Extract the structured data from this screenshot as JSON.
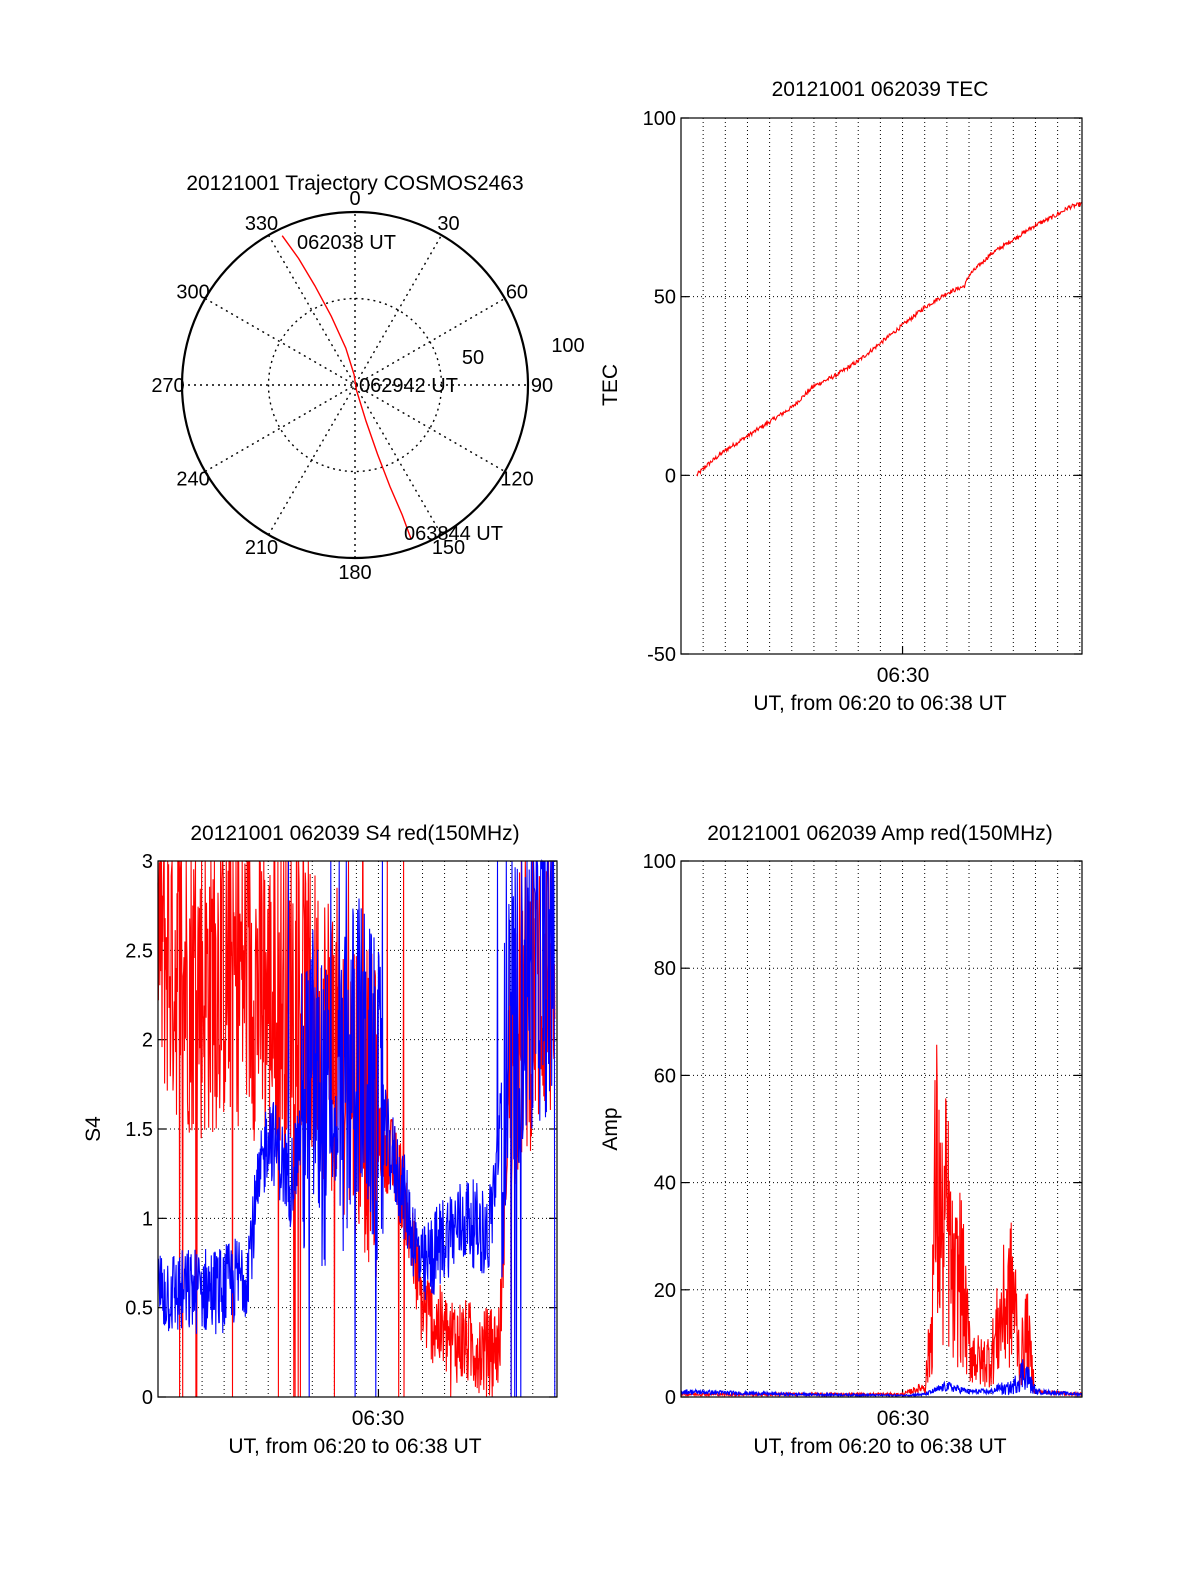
{
  "colors": {
    "red": "#ff0000",
    "blue": "#0000ff",
    "grid": "#000000",
    "axis": "#000000"
  },
  "chart_data": [
    {
      "id": "trajectory",
      "type": "polar",
      "title": "20121001 Trajectory COSMOS2463",
      "azimuth_labels": [
        "0",
        "30",
        "60",
        "90",
        "120",
        "150",
        "180",
        "210",
        "240",
        "270",
        "300",
        "330"
      ],
      "ring_labels": [
        "50",
        "100"
      ],
      "rlim": [
        0,
        100
      ],
      "track": [
        [
          334,
          96
        ],
        [
          336,
          80
        ],
        [
          338,
          62
        ],
        [
          341,
          42
        ],
        [
          346,
          22
        ],
        [
          355,
          6
        ],
        [
          164,
          3
        ],
        [
          163,
          22
        ],
        [
          162,
          42
        ],
        [
          161,
          62
        ],
        [
          160,
          80
        ],
        [
          160,
          95
        ]
      ],
      "annotations": [
        {
          "text": "062038 UT",
          "az": 334,
          "r": 96
        },
        {
          "text": "062942 UT",
          "az": 0,
          "r": 0
        },
        {
          "text": "063844 UT",
          "az": 160,
          "r": 95
        }
      ]
    },
    {
      "id": "tec",
      "type": "line",
      "title": "20121001 062039 TEC",
      "ylabel": "TEC",
      "xlabel": "UT, from 06:20 to 06:38 UT",
      "xtick_labels": [
        "06:30"
      ],
      "xlim": [
        0,
        18.1
      ],
      "ylim": [
        -50,
        100
      ],
      "yticks": [
        -50,
        0,
        50,
        100
      ],
      "series": [
        {
          "color": "#ff0000",
          "x": [
            0.7,
            1.2,
            2.0,
            3.0,
            4.0,
            5.0,
            6.0,
            7.0,
            8.0,
            9.0,
            10.0,
            11.0,
            12.0,
            12.8,
            13.0,
            14.0,
            15.0,
            16.0,
            17.0,
            17.5,
            18.1
          ],
          "y": [
            0,
            3,
            7,
            11,
            15,
            19,
            25,
            28,
            32,
            37,
            42,
            47,
            51,
            53,
            56,
            62,
            66,
            70,
            73,
            75,
            76
          ]
        }
      ]
    },
    {
      "id": "s4",
      "type": "line",
      "title": "20121001 062039 S4 red(150MHz)",
      "ylabel": "S4",
      "xlabel": "UT, from 06:20 to 06:38 UT",
      "xtick_labels": [
        "06:30"
      ],
      "xlim": [
        0,
        18.1
      ],
      "ylim": [
        0,
        3
      ],
      "yticks": [
        0,
        0.5,
        1,
        1.5,
        2,
        2.5,
        3
      ],
      "series": [
        {
          "color": "#ff0000",
          "x": [
            0,
            1.0,
            2.0,
            3.0,
            4.0,
            5.0,
            6.0,
            7.0,
            8.0,
            9.0,
            10.0,
            11.0,
            12.0,
            13.0,
            14.0,
            15.0,
            15.5,
            16.0,
            17.0,
            18.0
          ],
          "y": [
            2.6,
            2.4,
            2.3,
            2.4,
            2.4,
            2.2,
            2.3,
            2.1,
            2.0,
            1.8,
            1.5,
            1.2,
            0.5,
            0.35,
            0.3,
            0.25,
            0.3,
            2.0,
            2.3,
            2.4
          ]
        },
        {
          "color": "#0000ff",
          "x": [
            0,
            1.0,
            2.0,
            3.0,
            4.0,
            5.0,
            6.0,
            7.0,
            8.0,
            9.0,
            10.0,
            11.0,
            12.0,
            13.0,
            14.0,
            15.0,
            16.0,
            17.0,
            18.0
          ],
          "y": [
            0.6,
            0.58,
            0.6,
            0.6,
            0.7,
            1.5,
            1.2,
            1.8,
            1.4,
            2.0,
            1.6,
            1.2,
            0.7,
            0.9,
            1.0,
            0.9,
            2.0,
            2.4,
            2.5
          ]
        }
      ]
    },
    {
      "id": "amp",
      "type": "line",
      "title": "20121001 062039 Amp red(150MHz)",
      "ylabel": "Amp",
      "xlabel": "UT, from 06:20 to 06:38 UT",
      "xtick_labels": [
        "06:30"
      ],
      "xlim": [
        0,
        18.1
      ],
      "ylim": [
        0,
        100
      ],
      "yticks": [
        0,
        20,
        40,
        60,
        80,
        100
      ],
      "series": [
        {
          "color": "#ff0000",
          "x": [
            0,
            8.0,
            10.0,
            11.0,
            11.3,
            11.5,
            11.8,
            12.0,
            12.3,
            12.6,
            13.0,
            13.5,
            14.0,
            14.5,
            15.0,
            15.3,
            15.6,
            16.0,
            18.1
          ],
          "y": [
            0.5,
            0.5,
            0.5,
            2.0,
            20.0,
            65.0,
            45.0,
            55.0,
            30.0,
            38.0,
            15.0,
            10.0,
            12.0,
            25.0,
            32.0,
            10.0,
            20.0,
            1.0,
            0.5
          ]
        },
        {
          "color": "#0000ff",
          "x": [
            0,
            5.0,
            10.0,
            11.0,
            12.0,
            13.0,
            14.0,
            15.0,
            15.5,
            16.0,
            18.1
          ],
          "y": [
            1.0,
            0.5,
            0.3,
            0.5,
            2.0,
            1.0,
            1.0,
            3.0,
            8.0,
            1.0,
            0.5
          ]
        }
      ]
    }
  ]
}
